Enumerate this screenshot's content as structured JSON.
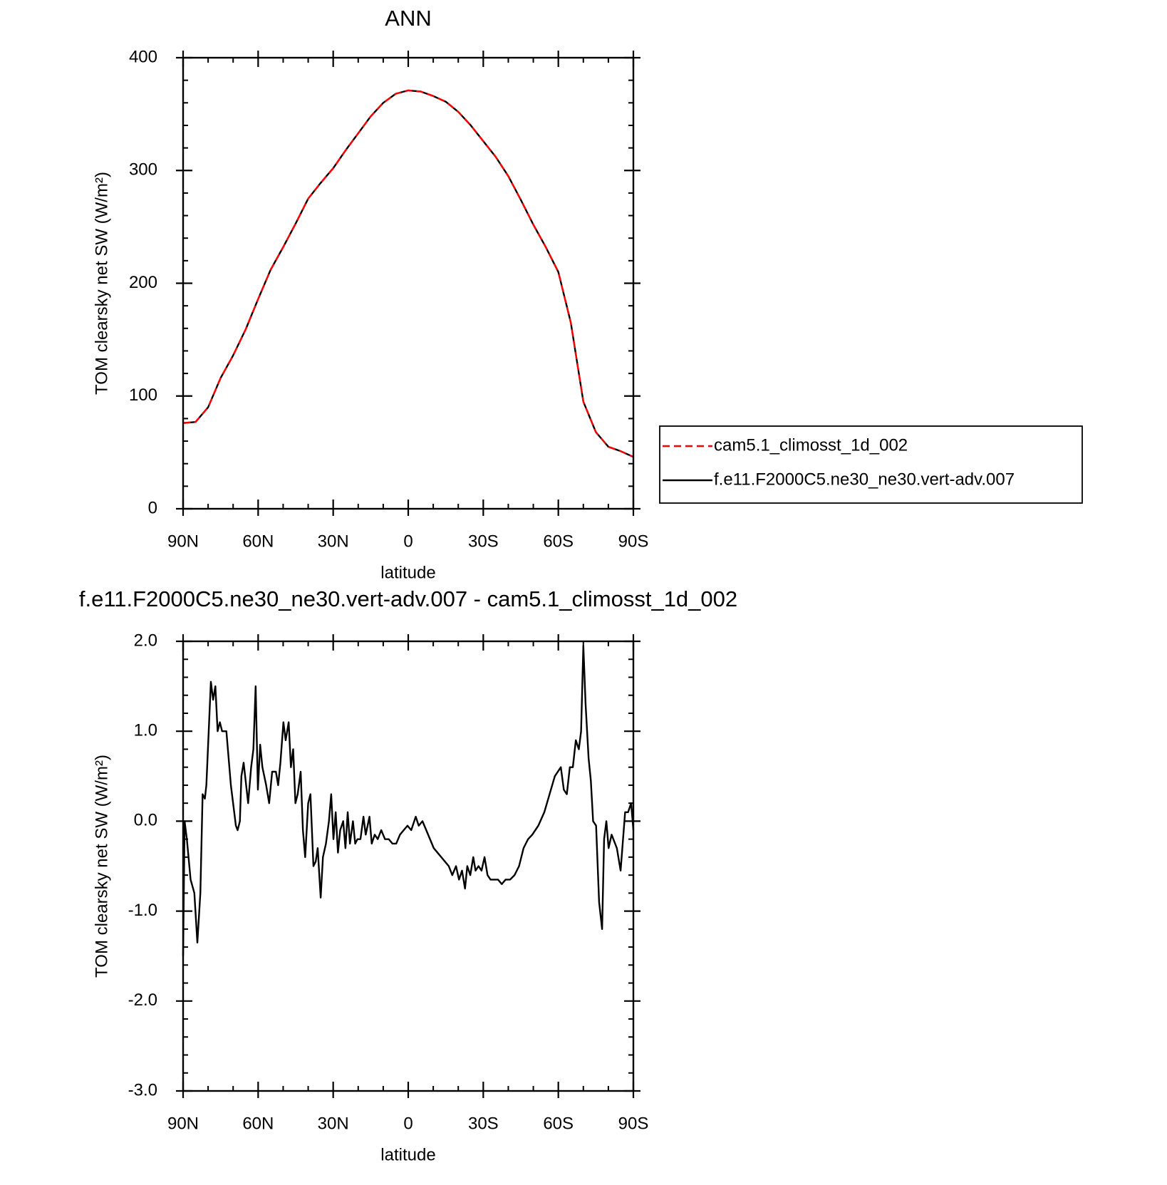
{
  "chart_data": [
    {
      "type": "line",
      "title": "ANN",
      "xlabel": "latitude",
      "ylabel": "TOM clearsky net SW (W/m²)",
      "x": [
        90,
        85,
        80,
        75,
        70,
        65,
        60,
        55,
        50,
        45,
        40,
        35,
        30,
        25,
        20,
        15,
        10,
        5,
        0,
        -5,
        -10,
        -15,
        -20,
        -25,
        -30,
        -35,
        -40,
        -45,
        -50,
        -55,
        -60,
        -65,
        -70,
        -75,
        -80,
        -85,
        -90
      ],
      "series": [
        {
          "name": "cam5.1_climosst_1d_002",
          "color": "#ff0000",
          "dash": true,
          "values": [
            76,
            77,
            90,
            116,
            136,
            159,
            186,
            212,
            232,
            253,
            275,
            289,
            302,
            318,
            333,
            348,
            360,
            368,
            371,
            370,
            366,
            361,
            352,
            340,
            326,
            312,
            295,
            274,
            252,
            232,
            210,
            165,
            95,
            68,
            55,
            51,
            46
          ]
        },
        {
          "name": "f.e11.F2000C5.ne30_ne30.vert-adv.007",
          "color": "#000000",
          "dash": false,
          "values": [
            76,
            77,
            90,
            116,
            136,
            159,
            186,
            212,
            232,
            253,
            275,
            289,
            302,
            318,
            333,
            348,
            360,
            368,
            371,
            370,
            366,
            361,
            352,
            340,
            326,
            312,
            295,
            274,
            252,
            232,
            210,
            165,
            95,
            68,
            55,
            51,
            46
          ]
        }
      ],
      "xlim": [
        90,
        -90
      ],
      "xticks": [
        {
          "value": 90,
          "label": "90N"
        },
        {
          "value": 60,
          "label": "60N"
        },
        {
          "value": 30,
          "label": "30N"
        },
        0,
        {
          "value": -30,
          "label": "30S"
        },
        {
          "value": -60,
          "label": "60S"
        },
        {
          "value": -90,
          "label": "90S"
        }
      ],
      "ylim": [
        0,
        400
      ],
      "yticks": [
        0,
        100,
        200,
        300,
        400
      ],
      "legend": "right"
    },
    {
      "type": "line",
      "title": "f.e11.F2000C5.ne30_ne30.vert-adv.007 - cam5.1_climosst_1d_002",
      "xlabel": "latitude",
      "ylabel": "TOM clearsky net SW (W/m²)",
      "x": [
        90,
        89.4,
        88.5,
        87,
        85.5,
        84.3,
        83.1,
        82.2,
        81.3,
        80.7,
        78.9,
        78,
        77.1,
        76.2,
        75.3,
        74.4,
        72.7,
        70.9,
        68.9,
        68.2,
        67.3,
        66.7,
        65.8,
        64,
        62.8,
        61.9,
        61,
        60.1,
        59.2,
        58.3,
        56.8,
        55.6,
        54.4,
        52.9,
        52,
        51.1,
        49.9,
        49,
        47.8,
        46.9,
        46,
        45.1,
        44.2,
        43,
        42.1,
        41.2,
        40,
        39.1,
        37.9,
        37,
        36.2,
        35,
        34.1,
        32.9,
        31.7,
        30.8,
        29.9,
        29,
        28.1,
        27.2,
        26,
        25.1,
        24.2,
        23.3,
        22.1,
        21.2,
        20.3,
        19.1,
        17.9,
        17,
        15.5,
        14.6,
        13.4,
        12.2,
        10.8,
        9.3,
        7.8,
        6.3,
        4.8,
        3.3,
        1.8,
        0.3,
        -1.2,
        -3,
        -4.2,
        -5.7,
        -7.2,
        -8.7,
        -10.2,
        -11.7,
        -13.2,
        -14.7,
        -16.2,
        -17.6,
        -19.1,
        -20.3,
        -21.5,
        -22.7,
        -23.6,
        -24.8,
        -26,
        -26.9,
        -28.1,
        -29.3,
        -30.5,
        -31.7,
        -32.9,
        -34.4,
        -35.9,
        -37.4,
        -38.9,
        -40.7,
        -42.5,
        -44.3,
        -46.1,
        -47.9,
        -49.6,
        -52,
        -54.4,
        -56.5,
        -58.6,
        -61,
        -62.2,
        -63.4,
        -64.6,
        -65.8,
        -67,
        -68.2,
        -69.1,
        -70,
        -70.9,
        -72.1,
        -73,
        -73.9,
        -75.1,
        -76.3,
        -77.5,
        -78.3,
        -79.2,
        -80.1,
        -81.3,
        -83.4,
        -84.9,
        -86.7,
        -87.9,
        -89.1,
        -90
      ],
      "values": [
        -1.5,
        0,
        -0.2,
        -0.65,
        -0.8,
        -1.35,
        -0.8,
        0.3,
        0.25,
        0.4,
        1.55,
        1.35,
        1.5,
        1,
        1.1,
        1,
        1,
        0.4,
        -0.05,
        -0.1,
        0,
        0.5,
        0.65,
        0.2,
        0.6,
        0.8,
        1.5,
        0.35,
        0.85,
        0.6,
        0.4,
        0.2,
        0.55,
        0.55,
        0.4,
        0.65,
        1.1,
        0.9,
        1.1,
        0.6,
        0.8,
        0.2,
        0.3,
        0.55,
        -0.1,
        -0.4,
        0.2,
        0.3,
        -0.5,
        -0.45,
        -0.3,
        -0.85,
        -0.4,
        -0.25,
        0,
        0.3,
        -0.2,
        0.1,
        -0.35,
        -0.1,
        0,
        -0.3,
        0.1,
        -0.25,
        0,
        -0.25,
        -0.2,
        -0.2,
        0.05,
        -0.15,
        0.05,
        -0.25,
        -0.15,
        -0.2,
        -0.1,
        -0.2,
        -0.2,
        -0.25,
        -0.25,
        -0.15,
        -0.1,
        -0.05,
        -0.1,
        0.05,
        -0.05,
        0,
        -0.1,
        -0.2,
        -0.3,
        -0.35,
        -0.4,
        -0.45,
        -0.5,
        -0.6,
        -0.5,
        -0.65,
        -0.55,
        -0.75,
        -0.5,
        -0.6,
        -0.4,
        -0.55,
        -0.5,
        -0.55,
        -0.4,
        -0.6,
        -0.65,
        -0.65,
        -0.65,
        -0.7,
        -0.65,
        -0.65,
        -0.6,
        -0.5,
        -0.3,
        -0.2,
        -0.15,
        -0.05,
        0.1,
        0.3,
        0.5,
        0.6,
        0.35,
        0.3,
        0.6,
        0.6,
        0.9,
        0.8,
        1,
        1.95,
        1.3,
        0.7,
        0.45,
        0,
        -0.05,
        -0.9,
        -1.2,
        -0.2,
        0,
        -0.3,
        -0.15,
        -0.3,
        -0.55,
        0.1,
        0.1,
        0.2,
        -0.1
      ],
      "color": "#000000",
      "xlim": [
        90,
        -90
      ],
      "xticks": [
        {
          "value": 90,
          "label": "90N"
        },
        {
          "value": 60,
          "label": "60N"
        },
        {
          "value": 30,
          "label": "30N"
        },
        0,
        {
          "value": -30,
          "label": "30S"
        },
        {
          "value": -60,
          "label": "60S"
        },
        {
          "value": -90,
          "label": "90S"
        }
      ],
      "ylim": [
        -3,
        2
      ],
      "yticks": [
        {
          "value": -3,
          "label": "-3.0"
        },
        {
          "value": -2,
          "label": "-2.0"
        },
        {
          "value": -1,
          "label": "-1.0"
        },
        {
          "value": 0,
          "label": "0.0"
        },
        {
          "value": 1,
          "label": "1.0"
        },
        {
          "value": 2,
          "label": "2.0"
        }
      ]
    }
  ]
}
